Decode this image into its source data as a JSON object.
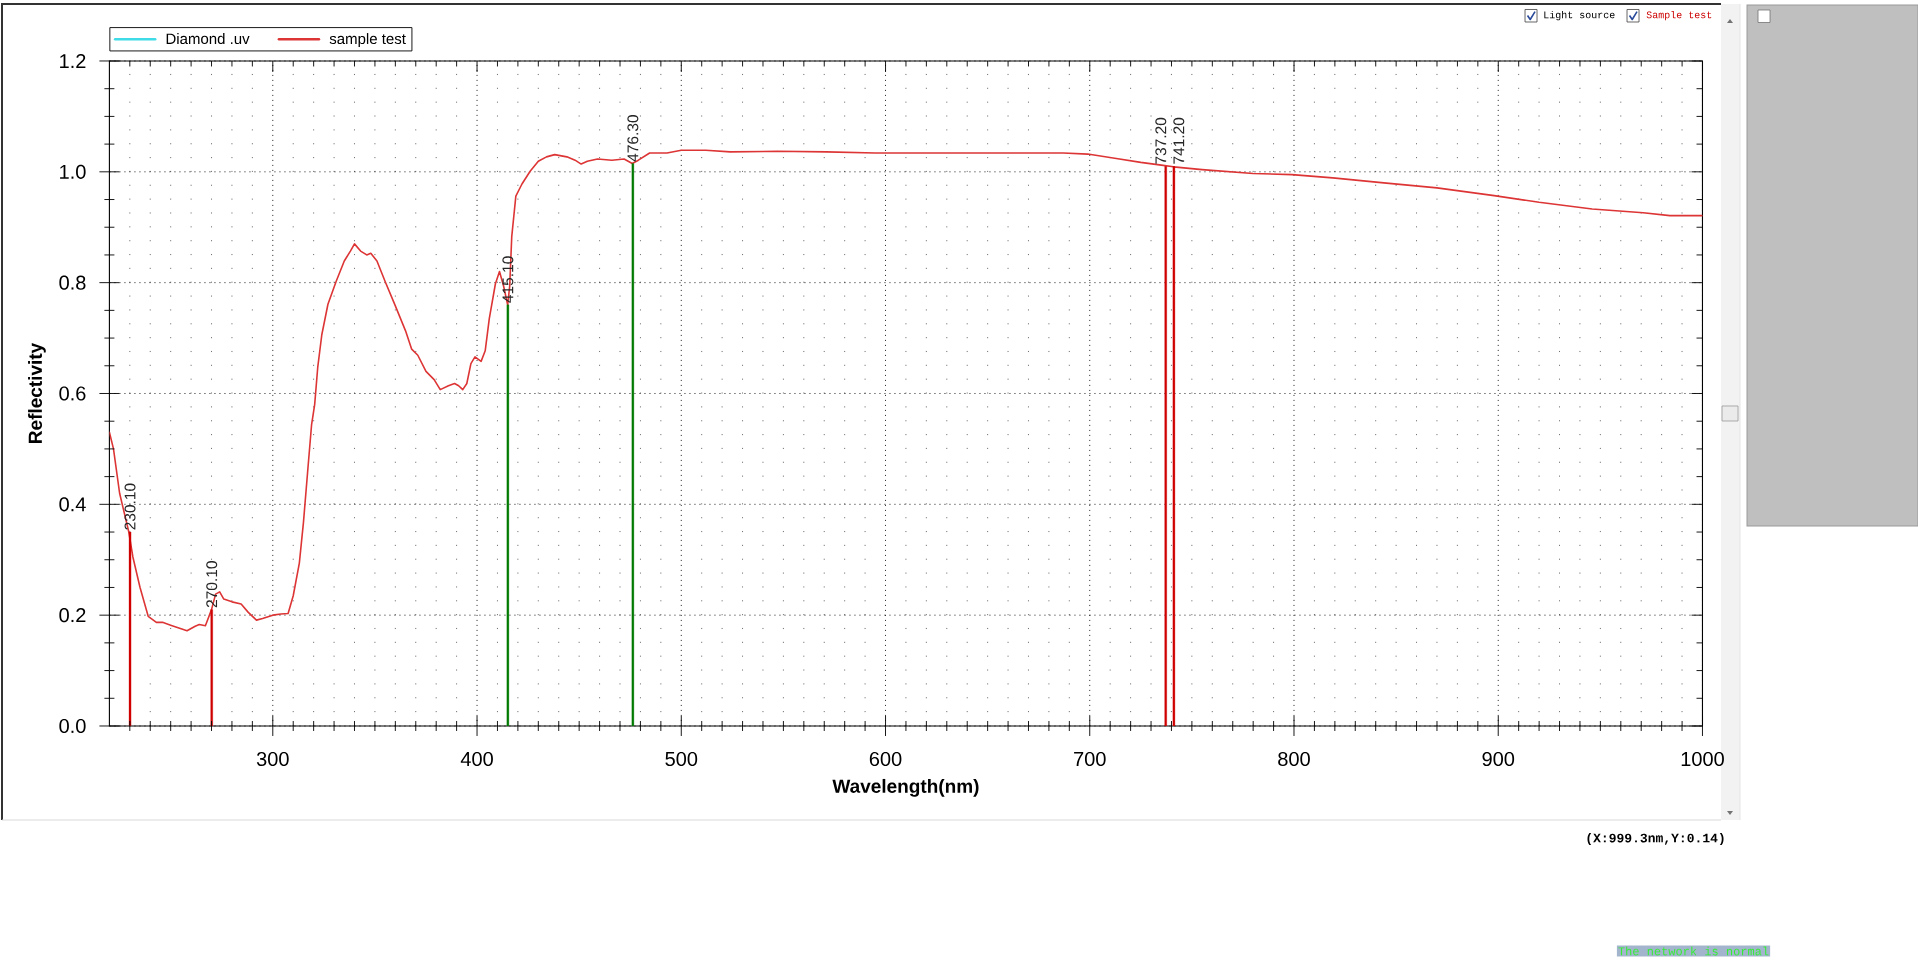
{
  "chart_data": {
    "type": "line",
    "xlabel": "Wavelength(nm)",
    "ylabel": "Reflectivity",
    "xlim": [
      220,
      1000
    ],
    "ylim": [
      0,
      1.2
    ],
    "xticks": [
      {
        "value": 230,
        "label": null
      },
      {
        "value": 240,
        "label": null
      },
      {
        "value": 250,
        "label": null
      },
      {
        "value": 260,
        "label": null
      },
      {
        "value": 270,
        "label": null
      },
      {
        "value": 280,
        "label": null
      },
      {
        "value": 290,
        "label": null
      },
      300,
      {
        "value": 310,
        "label": null
      },
      {
        "value": 320,
        "label": null
      },
      {
        "value": 330,
        "label": null
      },
      {
        "value": 340,
        "label": null
      },
      {
        "value": 350,
        "label": null
      },
      {
        "value": 360,
        "label": null
      },
      {
        "value": 370,
        "label": null
      },
      {
        "value": 380,
        "label": null
      },
      {
        "value": 390,
        "label": null
      },
      400,
      {
        "value": 410,
        "label": null
      },
      {
        "value": 420,
        "label": null
      },
      {
        "value": 430,
        "label": null
      },
      {
        "value": 440,
        "label": null
      },
      {
        "value": 450,
        "label": null
      },
      {
        "value": 460,
        "label": null
      },
      {
        "value": 470,
        "label": null
      },
      {
        "value": 480,
        "label": null
      },
      {
        "value": 490,
        "label": null
      },
      500,
      {
        "value": 510,
        "label": null
      },
      {
        "value": 520,
        "label": null
      },
      {
        "value": 530,
        "label": null
      },
      {
        "value": 540,
        "label": null
      },
      {
        "value": 550,
        "label": null
      },
      {
        "value": 560,
        "label": null
      },
      {
        "value": 570,
        "label": null
      },
      {
        "value": 580,
        "label": null
      },
      {
        "value": 590,
        "label": null
      },
      600,
      {
        "value": 610,
        "label": null
      },
      {
        "value": 620,
        "label": null
      },
      {
        "value": 630,
        "label": null
      },
      {
        "value": 640,
        "label": null
      },
      {
        "value": 650,
        "label": null
      },
      {
        "value": 660,
        "label": null
      },
      {
        "value": 670,
        "label": null
      },
      {
        "value": 680,
        "label": null
      },
      {
        "value": 690,
        "label": null
      },
      700,
      {
        "value": 710,
        "label": null
      },
      {
        "value": 720,
        "label": null
      },
      {
        "value": 730,
        "label": null
      },
      {
        "value": 740,
        "label": null
      },
      {
        "value": 750,
        "label": null
      },
      {
        "value": 760,
        "label": null
      },
      {
        "value": 770,
        "label": null
      },
      {
        "value": 780,
        "label": null
      },
      {
        "value": 790,
        "label": null
      },
      800,
      {
        "value": 810,
        "label": null
      },
      {
        "value": 820,
        "label": null
      },
      {
        "value": 830,
        "label": null
      },
      {
        "value": 840,
        "label": null
      },
      {
        "value": 850,
        "label": null
      },
      {
        "value": 860,
        "label": null
      },
      {
        "value": 870,
        "label": null
      },
      {
        "value": 880,
        "label": null
      },
      {
        "value": 890,
        "label": null
      },
      900,
      {
        "value": 910,
        "label": null
      },
      {
        "value": 920,
        "label": null
      },
      {
        "value": 930,
        "label": null
      },
      {
        "value": 940,
        "label": null
      },
      {
        "value": 950,
        "label": null
      },
      {
        "value": 960,
        "label": null
      },
      {
        "value": 970,
        "label": null
      },
      {
        "value": 980,
        "label": null
      },
      {
        "value": 990,
        "label": null
      },
      1000
    ],
    "yticks": [
      {
        "value": 0,
        "label": "0.0"
      },
      {
        "value": 0.05,
        "label": null
      },
      {
        "value": 0.1,
        "label": null
      },
      {
        "value": 0.15,
        "label": null
      },
      0.2,
      {
        "value": 0.25,
        "label": null
      },
      {
        "value": 0.3,
        "label": null
      },
      {
        "value": 0.35,
        "label": null
      },
      0.4,
      {
        "value": 0.45,
        "label": null
      },
      {
        "value": 0.5,
        "label": null
      },
      {
        "value": 0.55,
        "label": null
      },
      0.6,
      {
        "value": 0.65,
        "label": null
      },
      {
        "value": 0.7,
        "label": null
      },
      {
        "value": 0.75,
        "label": null
      },
      0.8,
      {
        "value": 0.85,
        "label": null
      },
      {
        "value": 0.9,
        "label": null
      },
      {
        "value": 0.95,
        "label": null
      },
      {
        "value": 1,
        "label": "1.0"
      },
      {
        "value": 1.05,
        "label": null
      },
      {
        "value": 1.1,
        "label": null
      },
      {
        "value": 1.15,
        "label": null
      },
      1.2
    ],
    "grid": true,
    "legend": "top left",
    "series": [
      {
        "name": "Diamond .uv",
        "color": "#3fdce8"
      },
      {
        "name": "sample test",
        "color": "#dd3535",
        "x": [
          220,
          222,
          225,
          229.5,
          231.5,
          235,
          239,
          243,
          246,
          250,
          254,
          258,
          262,
          264,
          267,
          270,
          272,
          274,
          276,
          280,
          284.5,
          288,
          292,
          295,
          300,
          304,
          307.5,
          310,
          313,
          315,
          317,
          319,
          320.5,
          322,
          324,
          327,
          331,
          335,
          338,
          340,
          343,
          346,
          348,
          351,
          355,
          360,
          365,
          368,
          371,
          375,
          379,
          382,
          386,
          389,
          391,
          393,
          395,
          397,
          399,
          402,
          404,
          406,
          409,
          411,
          413,
          415,
          416,
          417,
          419,
          422,
          426,
          430,
          434,
          438,
          444,
          448,
          451,
          454,
          459,
          466,
          472,
          476,
          479,
          484.5,
          493,
          500,
          512,
          524,
          547,
          571,
          595,
          618,
          642,
          666,
          687,
          699,
          713,
          725,
          735,
          741,
          755,
          780,
          799,
          819,
          844,
          870,
          898,
          920,
          946,
          971,
          984,
          1000
        ],
        "values": [
          0.53,
          0.5,
          0.42,
          0.35,
          0.305,
          0.25,
          0.198,
          0.187,
          0.187,
          0.182,
          0.177,
          0.172,
          0.18,
          0.183,
          0.181,
          0.21,
          0.238,
          0.242,
          0.229,
          0.224,
          0.22,
          0.205,
          0.191,
          0.194,
          0.2,
          0.202,
          0.203,
          0.235,
          0.294,
          0.367,
          0.456,
          0.544,
          0.58,
          0.647,
          0.706,
          0.761,
          0.802,
          0.839,
          0.857,
          0.87,
          0.857,
          0.85,
          0.853,
          0.839,
          0.802,
          0.758,
          0.713,
          0.68,
          0.669,
          0.64,
          0.625,
          0.607,
          0.614,
          0.618,
          0.614,
          0.607,
          0.618,
          0.654,
          0.666,
          0.658,
          0.677,
          0.735,
          0.798,
          0.82,
          0.794,
          0.76,
          0.794,
          0.883,
          0.956,
          0.978,
          1.001,
          1.019,
          1.027,
          1.031,
          1.027,
          1.021,
          1.014,
          1.019,
          1.023,
          1.021,
          1.023,
          1.015,
          1.021,
          1.034,
          1.034,
          1.039,
          1.039,
          1.036,
          1.037,
          1.036,
          1.034,
          1.034,
          1.034,
          1.034,
          1.034,
          1.032,
          1.024,
          1.017,
          1.012,
          1.009,
          1.004,
          0.997,
          0.995,
          0.989,
          0.98,
          0.971,
          0.957,
          0.945,
          0.933,
          0.926,
          0.921,
          0.921
        ]
      },
      {
        "type": "bar",
        "color": "#d00000",
        "x": [
          230.1,
          270.1,
          737.2,
          741.2
        ],
        "values": [
          0.35,
          0.21,
          1.01,
          1.01
        ]
      },
      {
        "type": "bar",
        "color": "#007a00",
        "x": [
          415.1,
          476.3
        ],
        "values": [
          0.76,
          1.015
        ]
      }
    ],
    "annotations": [
      "Light source",
      "Sample test",
      {
        "text": "230.10",
        "x": 230.1,
        "y": 0.35
      },
      {
        "text": "270.10",
        "x": 270.1,
        "y": 0.21
      },
      {
        "text": "415.10",
        "x": 415.1,
        "y": 0.76
      },
      {
        "text": "476.30",
        "x": 476.3,
        "y": 1.015
      },
      {
        "text": "737.20",
        "x": 737.2,
        "y": 1.01
      },
      {
        "text": "741.20",
        "x": 741.2,
        "y": 1.01
      },
      "(X:999.3nm,Y:0.14)",
      "The network is normal"
    ]
  }
}
